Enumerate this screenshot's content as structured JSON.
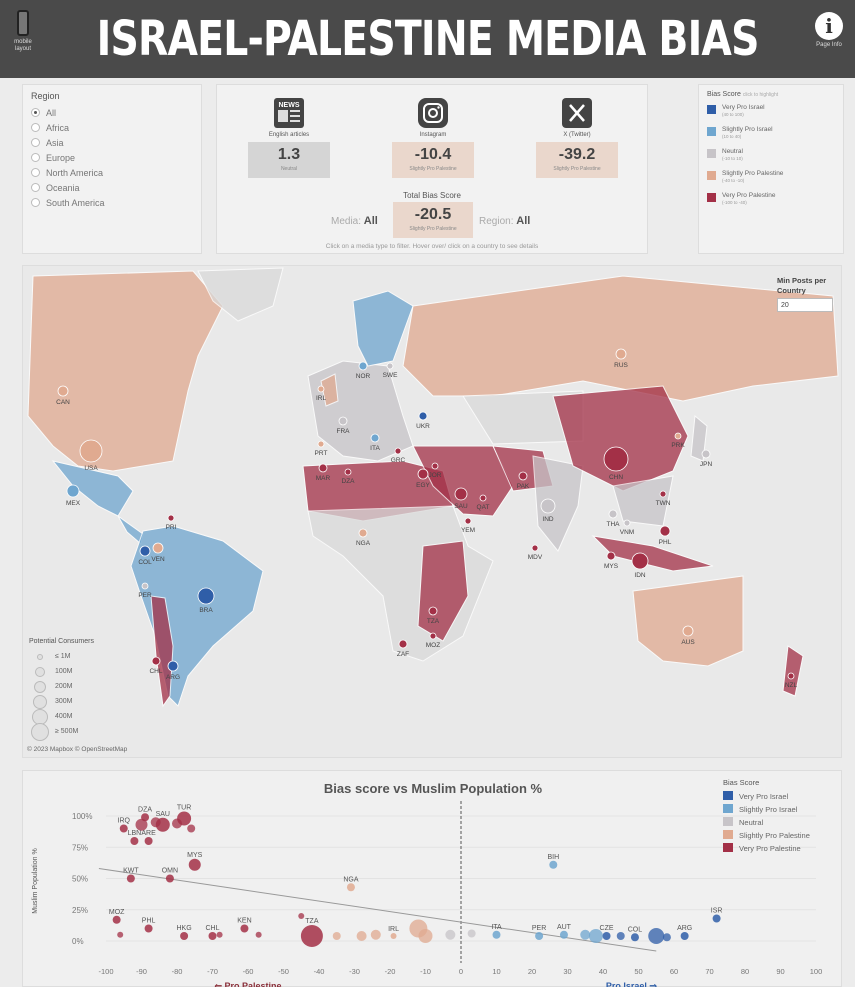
{
  "banner": {
    "title": "ISRAEL-PALESTINE MEDIA BIAS",
    "mobile_label": "mobile layout",
    "info_label": "Page Info"
  },
  "region": {
    "label": "Region",
    "options": [
      "All",
      "Africa",
      "Asia",
      "Europe",
      "North America",
      "Oceania",
      "South America"
    ],
    "selected": "All"
  },
  "media": {
    "cards": [
      {
        "name": "English articles",
        "value": "1.3",
        "sub": "Neutral",
        "bg": "#d5d5d5"
      },
      {
        "name": "Instagram",
        "value": "-10.4",
        "sub": "Slightly Pro Palestine",
        "bg": "#ead7cc"
      },
      {
        "name": "X (Twitter)",
        "value": "-39.2",
        "sub": "Slightly Pro Palestine",
        "bg": "#ead7cc"
      }
    ],
    "total_label": "Total Bias Score",
    "total_value": "-20.5",
    "total_sub": "Slightly Pro Palestine",
    "media_label": "Media:",
    "media_value": "All",
    "region_label": "Region:",
    "region_value": "All",
    "hint": "Click on a media type to filter.  Hover over/ click on a country to see details"
  },
  "bias_legend": {
    "title": "Bias Score",
    "hint": "click to highlight",
    "items": [
      {
        "label": "Very Pro Israel",
        "range": "(40 to 100)",
        "color": "#2f5ea8"
      },
      {
        "label": "Slightly Pro Israel",
        "range": "(10 to 40)",
        "color": "#6fa6cf"
      },
      {
        "label": "Neutral",
        "range": "(-10 to 10)",
        "color": "#c7c4c8"
      },
      {
        "label": "Slightly Pro Palestine",
        "range": "(-40 to -10)",
        "color": "#e0aa90"
      },
      {
        "label": "Very Pro Palestine",
        "range": "(-100 to -40)",
        "color": "#a33047"
      }
    ]
  },
  "map": {
    "min_posts_label": "Min Posts per Country",
    "min_posts_value": "20",
    "copyright": "© 2023 Mapbox © OpenStreetMap",
    "consumers_title": "Potential Consumers",
    "consumers": [
      "≤ 1M",
      "100M",
      "200M",
      "300M",
      "400M",
      "≥ 500M"
    ],
    "countries": [
      "CAN",
      "USA",
      "MEX",
      "PRI",
      "VEN",
      "COL",
      "PER",
      "BRA",
      "CHL",
      "ARG",
      "NOR",
      "SWE",
      "IRL",
      "FRA",
      "PRT",
      "ITA",
      "GRC",
      "UKR",
      "MAR",
      "DZA",
      "EGY",
      "JOR",
      "SAU",
      "QAT",
      "YEM",
      "PAK",
      "IND",
      "NGA",
      "TZA",
      "MOZ",
      "ZAF",
      "MDV",
      "RUS",
      "CHN",
      "PRK",
      "JPN",
      "TWN",
      "THA",
      "VNM",
      "PHL",
      "MYS",
      "IDN",
      "AUS",
      "NZL"
    ]
  },
  "chart_data": {
    "type": "scatter",
    "title": "Bias score vs Muslim Population %",
    "ylabel": "Muslim Population %",
    "xlim": [
      -100,
      100
    ],
    "ylim": [
      0,
      100
    ],
    "xticks": [
      -100,
      -90,
      -80,
      -70,
      -60,
      -50,
      -40,
      -30,
      -20,
      -10,
      0,
      10,
      20,
      30,
      40,
      50,
      60,
      70,
      80,
      90,
      100
    ],
    "yticks": [
      "0%",
      "25%",
      "50%",
      "75%",
      "100%"
    ],
    "x_left_label": "⇐ Pro Palestine",
    "x_right_label": "Pro Israel ⇒",
    "legend_title": "Bias Score",
    "points": [
      {
        "label": "DZA",
        "x": -89,
        "y": 99
      },
      {
        "label": "TUR",
        "x": -78,
        "y": 98
      },
      {
        "label": "SAU",
        "x": -84,
        "y": 93
      },
      {
        "label": "IRQ",
        "x": -95,
        "y": 90
      },
      {
        "label": "LBN",
        "x": -92,
        "y": 80
      },
      {
        "label": "ARE",
        "x": -88,
        "y": 80
      },
      {
        "label": "MYS",
        "x": -75,
        "y": 61
      },
      {
        "label": "KWT",
        "x": -93,
        "y": 50
      },
      {
        "label": "OMN",
        "x": -82,
        "y": 50
      },
      {
        "label": "BIH",
        "x": 26,
        "y": 61
      },
      {
        "label": "NGA",
        "x": -31,
        "y": 43
      },
      {
        "label": "MOZ",
        "x": -97,
        "y": 17
      },
      {
        "label": "PHL",
        "x": -88,
        "y": 10
      },
      {
        "label": "HKG",
        "x": -78,
        "y": 4
      },
      {
        "label": "CHL",
        "x": -70,
        "y": 4
      },
      {
        "label": "KEN",
        "x": -61,
        "y": 10
      },
      {
        "label": "TZA",
        "x": -42,
        "y": 4
      },
      {
        "label": "IRL",
        "x": -19,
        "y": 4
      },
      {
        "label": "ITA",
        "x": 10,
        "y": 5
      },
      {
        "label": "PER",
        "x": 22,
        "y": 4
      },
      {
        "label": "AUT",
        "x": 29,
        "y": 5
      },
      {
        "label": "CZE",
        "x": 41,
        "y": 4
      },
      {
        "label": "COL",
        "x": 49,
        "y": 3
      },
      {
        "label": "ARG",
        "x": 63,
        "y": 4
      },
      {
        "label": "ISR",
        "x": 72,
        "y": 18
      }
    ]
  }
}
